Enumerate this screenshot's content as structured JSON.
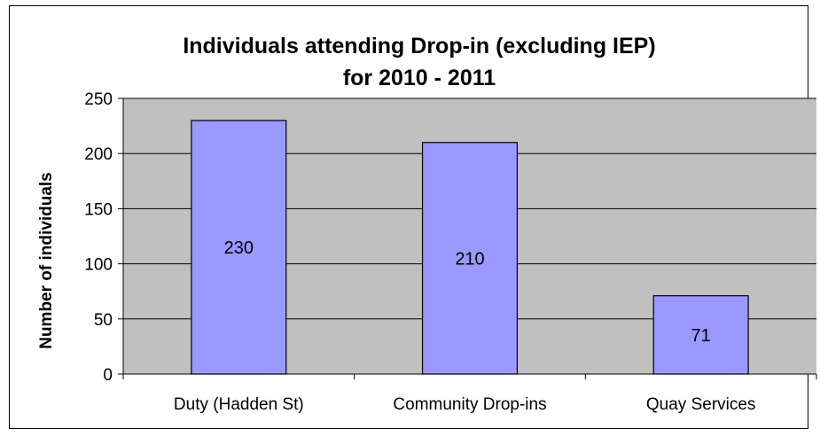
{
  "chart_data": {
    "type": "bar",
    "title": [
      "Individuals attending Drop-in (excluding IEP)",
      "for 2010 - 2011"
    ],
    "ylabel": "Number of individuals",
    "xlabel": "",
    "categories": [
      "Duty (Hadden St)",
      "Community Drop-ins",
      "Quay Services"
    ],
    "values": [
      230,
      210,
      71
    ],
    "data_labels": [
      "230",
      "210",
      "71"
    ],
    "ylim": [
      0,
      250
    ],
    "yticks": [
      0,
      50,
      100,
      150,
      200,
      250
    ],
    "grid": true,
    "legend": "none",
    "colors": {
      "bar_fill": "#9999ff",
      "bar_stroke": "#000000",
      "plot_background": "#c0c0c0",
      "gridline": "#000000"
    }
  }
}
